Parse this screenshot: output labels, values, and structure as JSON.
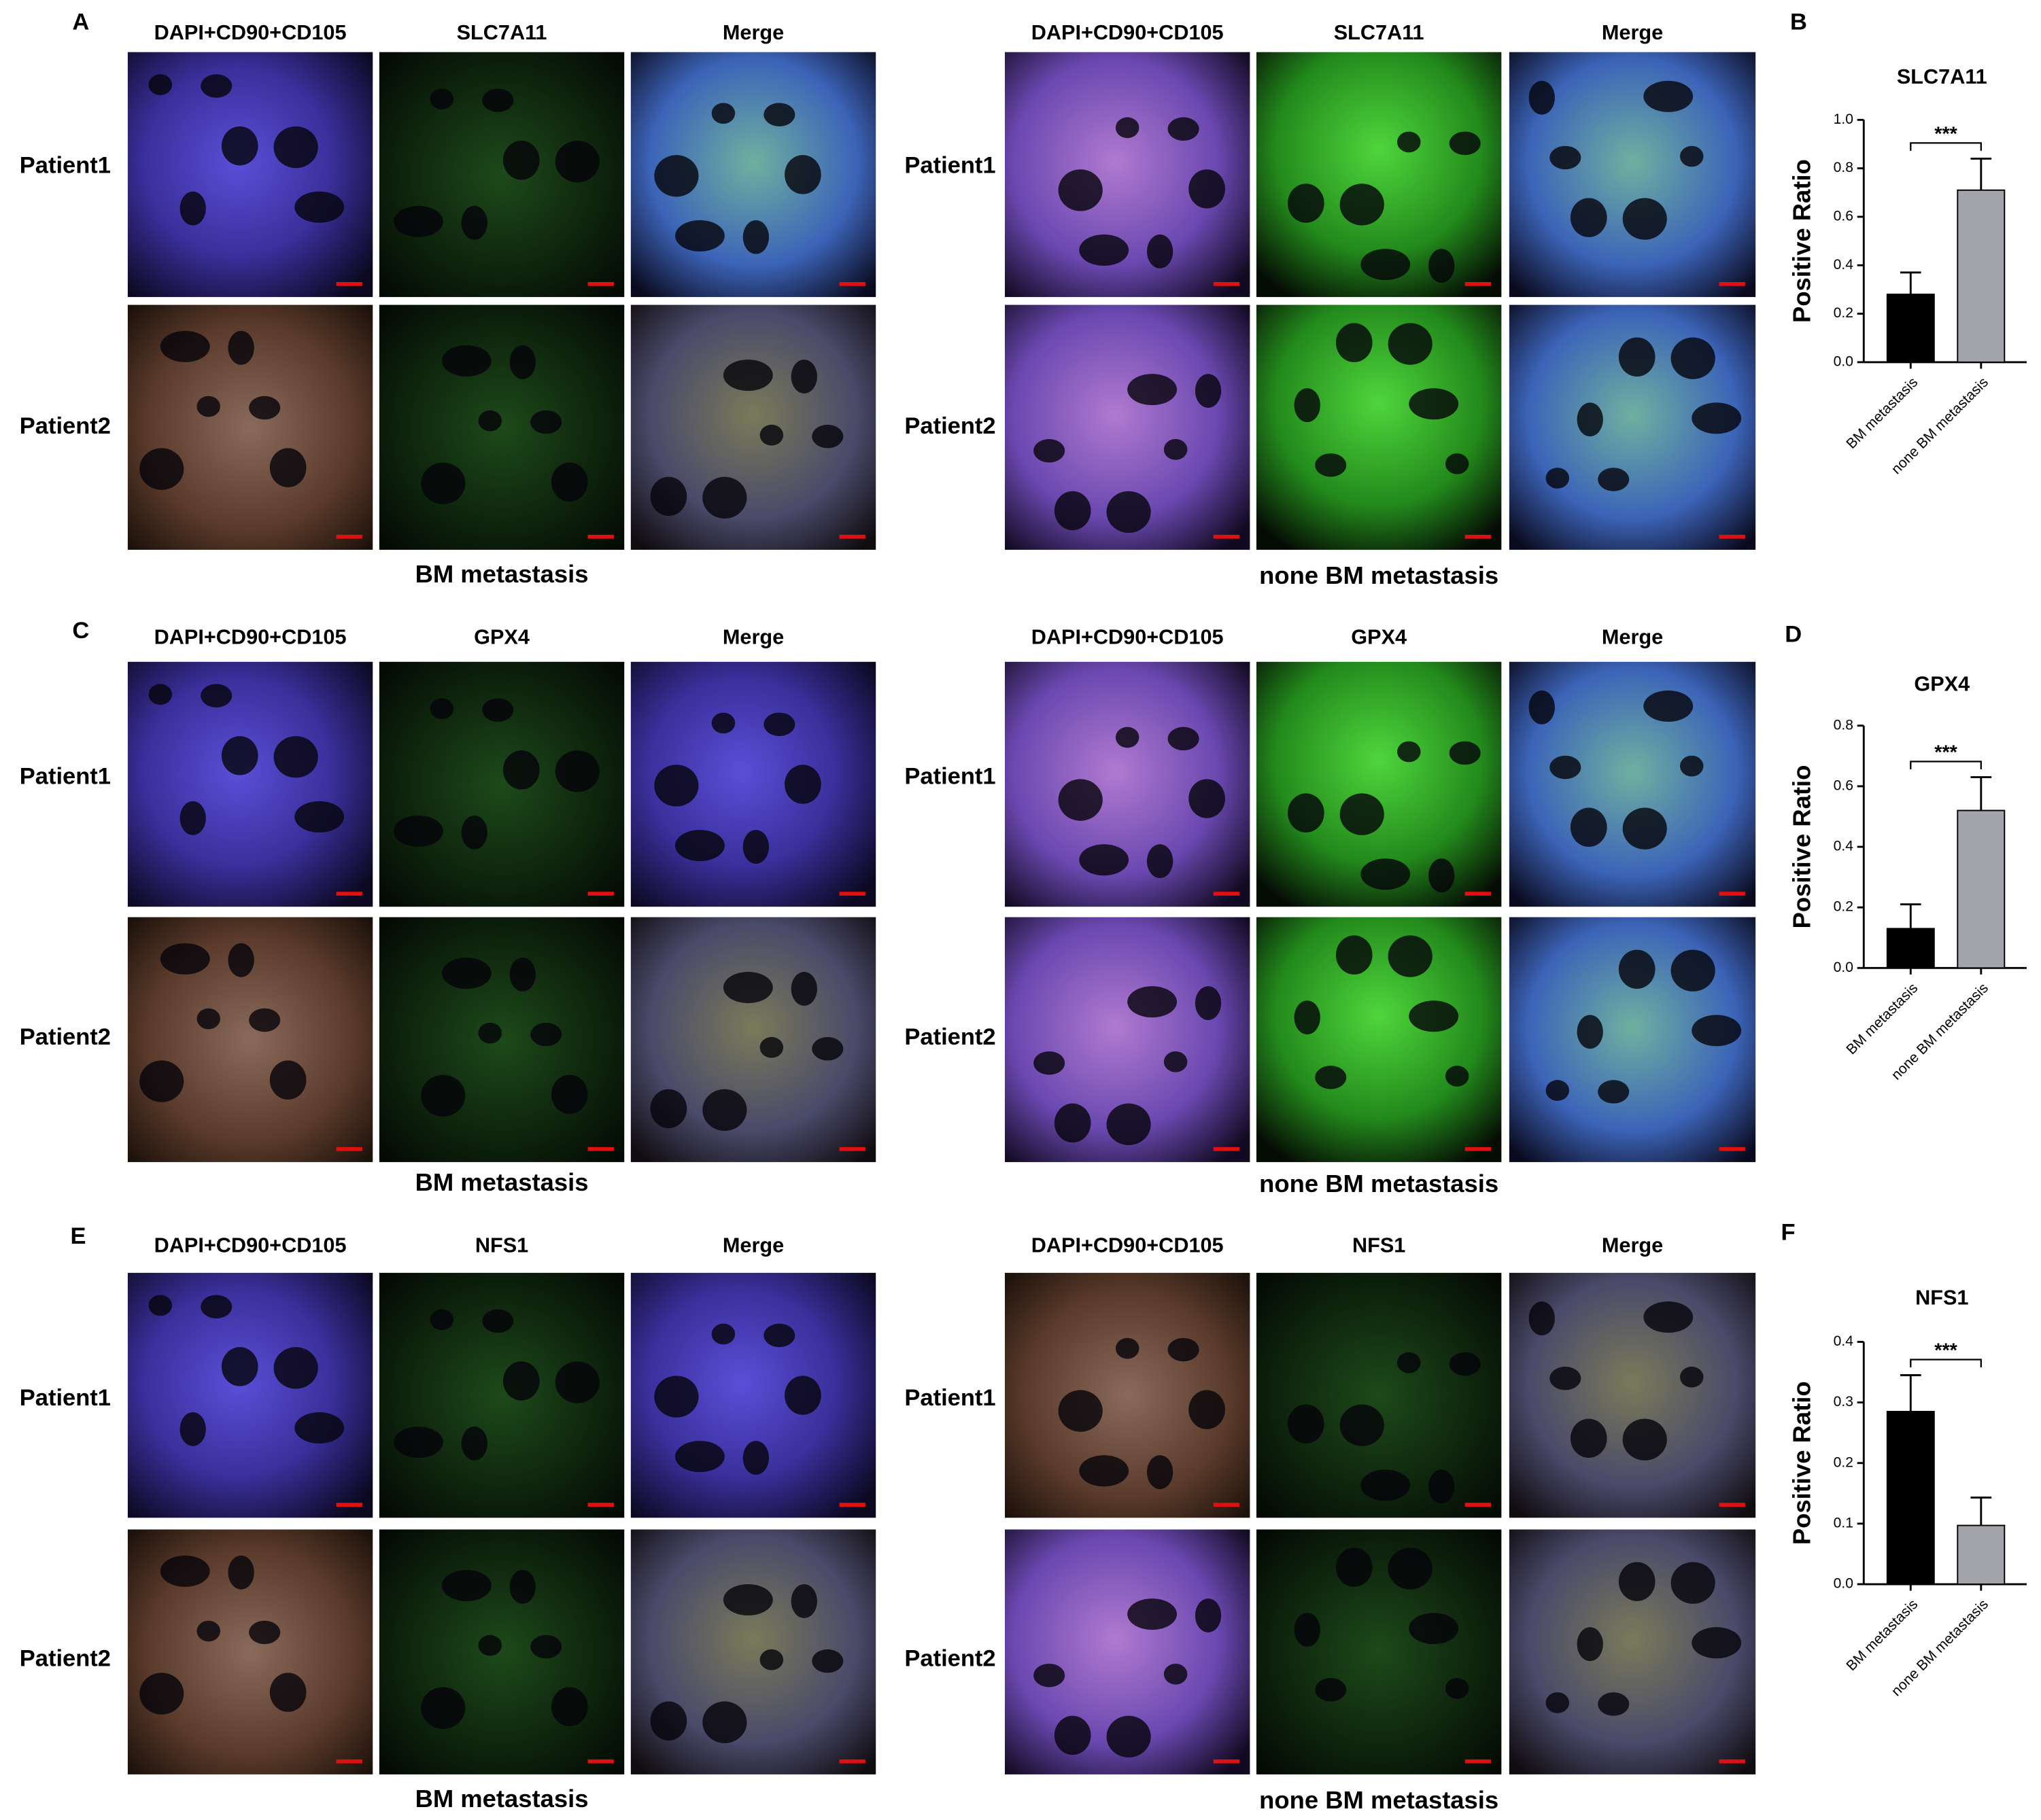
{
  "figure": {
    "panels": [
      {
        "label": "A",
        "columns": [
          "DAPI+CD90+CD105",
          "SLC7A11",
          "Merge",
          "DAPI+CD90+CD105",
          "SLC7A11",
          "Merge"
        ],
        "rows": [
          "Patient1",
          "Patient2",
          "Patient1",
          "Patient2"
        ],
        "groups": [
          "BM metastasis",
          "none BM metastasis"
        ]
      },
      {
        "label": "C",
        "columns": [
          "DAPI+CD90+CD105",
          "GPX4",
          "Merge",
          "DAPI+CD90+CD105",
          "GPX4",
          "Merge"
        ],
        "rows": [
          "Patient1",
          "Patient2",
          "Patient1",
          "Patient2"
        ],
        "groups": [
          "BM metastasis",
          "none BM metastasis"
        ]
      },
      {
        "label": "E",
        "columns": [
          "DAPI+CD90+CD105",
          "NFS1",
          "Merge",
          "DAPI+CD90+CD105",
          "NFS1",
          "Merge"
        ],
        "rows": [
          "Patient1",
          "Patient2",
          "Patient1",
          "Patient2"
        ],
        "groups": [
          "BM metastasis",
          "none BM metastasis"
        ]
      }
    ]
  },
  "chart_data": [
    {
      "type": "bar",
      "panel_label": "B",
      "title": "SLC7A11",
      "y_label": "Positive Ratio",
      "categories": [
        "BM metastasis",
        "none BM metastasis"
      ],
      "values": [
        0.28,
        0.71
      ],
      "errors": [
        0.09,
        0.13
      ],
      "colors": [
        "#000000",
        "#a3a3ab"
      ],
      "significance": "***",
      "ylim": [
        0,
        1.0
      ],
      "yticks": [
        {
          "value": 0,
          "label": "0.0"
        },
        {
          "value": 0.2,
          "label": "0.2"
        },
        {
          "value": 0.4,
          "label": "0.4"
        },
        {
          "value": 0.6,
          "label": "0.6"
        },
        {
          "value": 0.8,
          "label": "0.8"
        },
        {
          "value": 1.0,
          "label": "1.0"
        }
      ]
    },
    {
      "type": "bar",
      "panel_label": "D",
      "title": "GPX4",
      "y_label": "Positive Ratio",
      "categories": [
        "BM metastasis",
        "none BM metastasis"
      ],
      "values": [
        0.13,
        0.52
      ],
      "errors": [
        0.08,
        0.11
      ],
      "colors": [
        "#000000",
        "#a3a3ab"
      ],
      "significance": "***",
      "ylim": [
        0,
        0.8
      ],
      "yticks": [
        {
          "value": 0,
          "label": "0.0"
        },
        {
          "value": 0.2,
          "label": "0.2"
        },
        {
          "value": 0.4,
          "label": "0.4"
        },
        {
          "value": 0.6,
          "label": "0.6"
        },
        {
          "value": 0.8,
          "label": "0.8"
        }
      ]
    },
    {
      "type": "bar",
      "panel_label": "F",
      "title": "NFS1",
      "y_label": "Positive Ratio",
      "categories": [
        "BM metastasis",
        "none BM metastasis"
      ],
      "values": [
        0.285,
        0.097
      ],
      "errors": [
        0.06,
        0.046
      ],
      "colors": [
        "#000000",
        "#a3a3ab"
      ],
      "significance": "***",
      "ylim": [
        0,
        0.4
      ],
      "yticks": [
        {
          "value": 0,
          "label": "0.0"
        },
        {
          "value": 0.1,
          "label": "0.1"
        },
        {
          "value": 0.2,
          "label": "0.2"
        },
        {
          "value": 0.3,
          "label": "0.3"
        },
        {
          "value": 0.4,
          "label": "0.4"
        }
      ]
    }
  ]
}
